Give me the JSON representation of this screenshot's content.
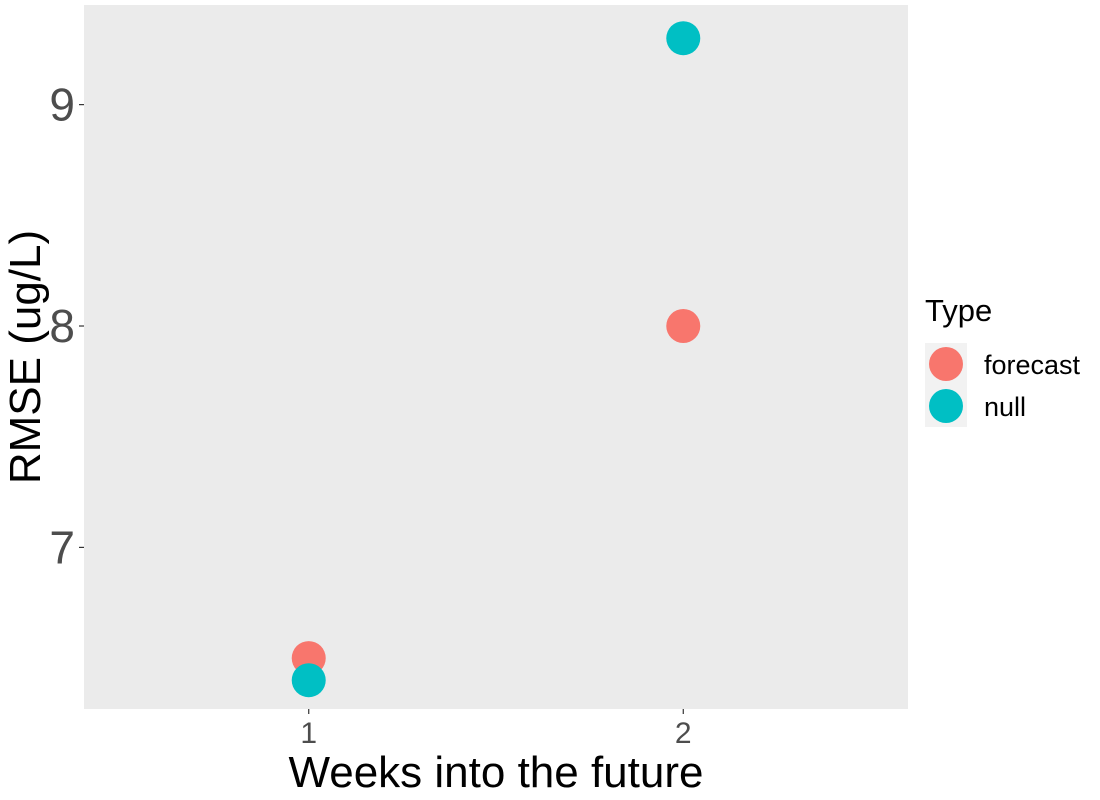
{
  "chart_data": {
    "type": "scatter",
    "title": "",
    "xlabel": "Weeks into the future",
    "ylabel": "RMSE (ug/L)",
    "x_ticks": [
      "1",
      "2"
    ],
    "y_ticks": [
      "7",
      "8",
      "9"
    ],
    "xlim": [
      0.4,
      2.6
    ],
    "ylim": [
      6.27,
      9.45
    ],
    "grid": false,
    "legend": {
      "title": "Type",
      "placement": "right"
    },
    "series": [
      {
        "name": "forecast",
        "color": "#F8766D",
        "points": [
          {
            "x": 1,
            "y": 6.5
          },
          {
            "x": 2,
            "y": 8.0
          }
        ]
      },
      {
        "name": "null",
        "color": "#00BFC4",
        "points": [
          {
            "x": 1,
            "y": 6.4
          },
          {
            "x": 2,
            "y": 9.3
          }
        ]
      }
    ],
    "panel_background": "#EBEBEB"
  }
}
